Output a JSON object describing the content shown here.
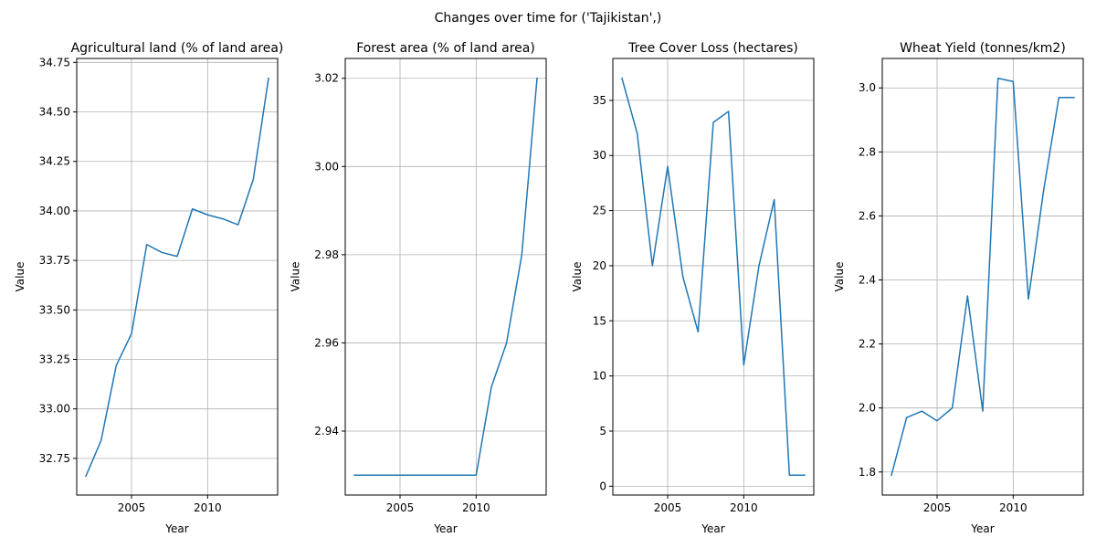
{
  "figure": {
    "suptitle": "Changes over time for ('Tajikistan',)"
  },
  "colors": {
    "line": "#1f77b4"
  },
  "chart_data": [
    {
      "type": "line",
      "title": "Agricultural land (% of land area)",
      "xlabel": "Year",
      "ylabel": "Value",
      "grid": true,
      "xlim": [
        2001.4,
        2014.6
      ],
      "ylim": [
        32.565,
        34.77
      ],
      "xticks": [
        2005,
        2010
      ],
      "xtick_labels": [
        "2005",
        "2010"
      ],
      "yticks": [
        32.75,
        33.0,
        33.25,
        33.5,
        33.75,
        34.0,
        34.25,
        34.5,
        34.75
      ],
      "ytick_labels": [
        "32.75",
        "33.00",
        "33.25",
        "33.50",
        "33.75",
        "34.00",
        "34.25",
        "34.50",
        "34.75"
      ],
      "x": [
        2002,
        2003,
        2004,
        2005,
        2006,
        2007,
        2008,
        2009,
        2010,
        2011,
        2012,
        2013,
        2014
      ],
      "y": [
        32.66,
        32.84,
        33.22,
        33.38,
        33.83,
        33.79,
        33.77,
        34.01,
        33.98,
        33.96,
        33.93,
        34.16,
        34.67
      ]
    },
    {
      "type": "line",
      "title": "Forest area (% of land area)",
      "xlabel": "Year",
      "ylabel": "Value",
      "grid": true,
      "xlim": [
        2001.4,
        2014.6
      ],
      "ylim": [
        2.9255,
        3.0245
      ],
      "xticks": [
        2005,
        2010
      ],
      "xtick_labels": [
        "2005",
        "2010"
      ],
      "yticks": [
        2.94,
        2.96,
        2.98,
        3.0,
        3.02
      ],
      "ytick_labels": [
        "2.94",
        "2.96",
        "2.98",
        "3.00",
        "3.02"
      ],
      "x": [
        2002,
        2003,
        2004,
        2005,
        2006,
        2007,
        2008,
        2009,
        2010,
        2011,
        2012,
        2013,
        2014
      ],
      "y": [
        2.93,
        2.93,
        2.93,
        2.93,
        2.93,
        2.93,
        2.93,
        2.93,
        2.93,
        2.95,
        2.96,
        2.98,
        3.02
      ]
    },
    {
      "type": "line",
      "title": "Tree Cover Loss (hectares)",
      "xlabel": "Year",
      "ylabel": "Value",
      "grid": true,
      "xlim": [
        2001.4,
        2014.6
      ],
      "ylim": [
        -0.8,
        38.8
      ],
      "xticks": [
        2005,
        2010
      ],
      "xtick_labels": [
        "2005",
        "2010"
      ],
      "yticks": [
        0,
        5,
        10,
        15,
        20,
        25,
        30,
        35
      ],
      "ytick_labels": [
        "0",
        "5",
        "10",
        "15",
        "20",
        "25",
        "30",
        "35"
      ],
      "x": [
        2002,
        2003,
        2004,
        2005,
        2006,
        2007,
        2008,
        2009,
        2010,
        2011,
        2012,
        2013,
        2014
      ],
      "y": [
        37,
        32,
        20,
        29,
        19,
        14,
        33,
        34,
        11,
        20,
        26,
        1,
        1
      ]
    },
    {
      "type": "line",
      "title": "Wheat Yield (tonnes/km2)",
      "xlabel": "Year",
      "ylabel": "Value",
      "grid": true,
      "xlim": [
        2001.4,
        2014.6
      ],
      "ylim": [
        1.728,
        3.092
      ],
      "xticks": [
        2005,
        2010
      ],
      "xtick_labels": [
        "2005",
        "2010"
      ],
      "yticks": [
        1.8,
        2.0,
        2.2,
        2.4,
        2.6,
        2.8,
        3.0
      ],
      "ytick_labels": [
        "1.8",
        "2.0",
        "2.2",
        "2.4",
        "2.6",
        "2.8",
        "3.0"
      ],
      "x": [
        2002,
        2003,
        2004,
        2005,
        2006,
        2007,
        2008,
        2009,
        2010,
        2011,
        2012,
        2013,
        2014
      ],
      "y": [
        1.79,
        1.97,
        1.99,
        1.96,
        2.0,
        2.35,
        1.99,
        3.03,
        3.02,
        2.34,
        2.68,
        2.97,
        2.97
      ]
    }
  ]
}
